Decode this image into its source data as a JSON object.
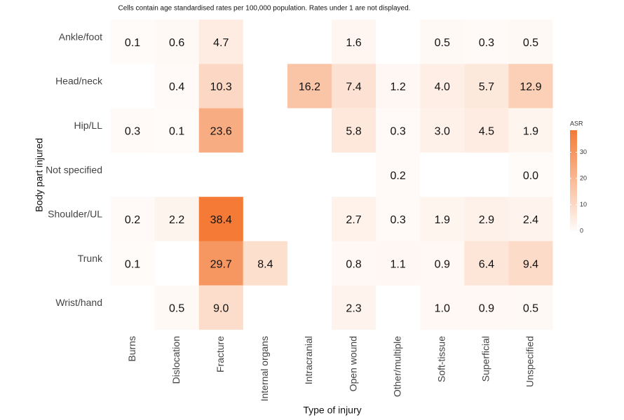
{
  "chart_data": {
    "type": "heatmap",
    "title": "Cells contain age standardised rates per 100,000 population. Rates under 1 are not displayed.",
    "x_label": "Type of injury",
    "y_label": "Body part injured",
    "x_categories": [
      "Burns",
      "Dislocation",
      "Fracture",
      "Internal organs",
      "Intracranial",
      "Open wound",
      "Other/multiple",
      "Soft-tissue",
      "Superficial",
      "Unspecified"
    ],
    "y_categories": [
      "Ankle/foot",
      "Head/neck",
      "Hip/LL",
      "Not specified",
      "Shoulder/UL",
      "Trunk",
      "Wrist/hand"
    ],
    "values": [
      [
        0.1,
        0.6,
        4.7,
        null,
        null,
        1.6,
        null,
        0.5,
        0.3,
        0.5
      ],
      [
        null,
        0.4,
        10.3,
        null,
        16.2,
        7.4,
        1.2,
        4.0,
        5.7,
        12.9
      ],
      [
        0.3,
        0.1,
        23.6,
        null,
        null,
        5.8,
        0.3,
        3.0,
        4.5,
        1.9
      ],
      [
        null,
        null,
        null,
        null,
        null,
        null,
        0.2,
        null,
        null,
        0.0
      ],
      [
        0.2,
        2.2,
        38.4,
        null,
        null,
        2.7,
        0.3,
        1.9,
        2.9,
        2.4
      ],
      [
        0.1,
        null,
        29.7,
        8.4,
        null,
        0.8,
        1.1,
        0.9,
        6.4,
        9.4
      ],
      [
        null,
        0.5,
        9.0,
        null,
        null,
        2.3,
        null,
        1.0,
        0.9,
        0.5
      ]
    ],
    "value_labels": [
      [
        "0.1",
        "0.6",
        "4.7",
        null,
        null,
        "1.6",
        null,
        "0.5",
        "0.3",
        "0.5"
      ],
      [
        null,
        "0.4",
        "10.3",
        null,
        "16.2",
        "7.4",
        "1.2",
        "4.0",
        "5.7",
        "12.9"
      ],
      [
        "0.3",
        "0.1",
        "23.6",
        null,
        null,
        "5.8",
        "0.3",
        "3.0",
        "4.5",
        "1.9"
      ],
      [
        null,
        null,
        null,
        null,
        null,
        null,
        "0.2",
        null,
        null,
        "0.0"
      ],
      [
        "0.2",
        "2.2",
        "38.4",
        null,
        null,
        "2.7",
        "0.3",
        "1.9",
        "2.9",
        "2.4"
      ],
      [
        "0.1",
        null,
        "29.7",
        "8.4",
        null,
        "0.8",
        "1.1",
        "0.9",
        "6.4",
        "9.4"
      ],
      [
        null,
        "0.5",
        "9.0",
        null,
        null,
        "2.3",
        null,
        "1.0",
        "0.9",
        "0.5"
      ]
    ],
    "colors": [
      "#fffbf9",
      "#f47a35"
    ],
    "legend_title": "ASR",
    "clim": [
      0,
      38.4
    ],
    "cticks": [
      0,
      10,
      20,
      30
    ]
  }
}
